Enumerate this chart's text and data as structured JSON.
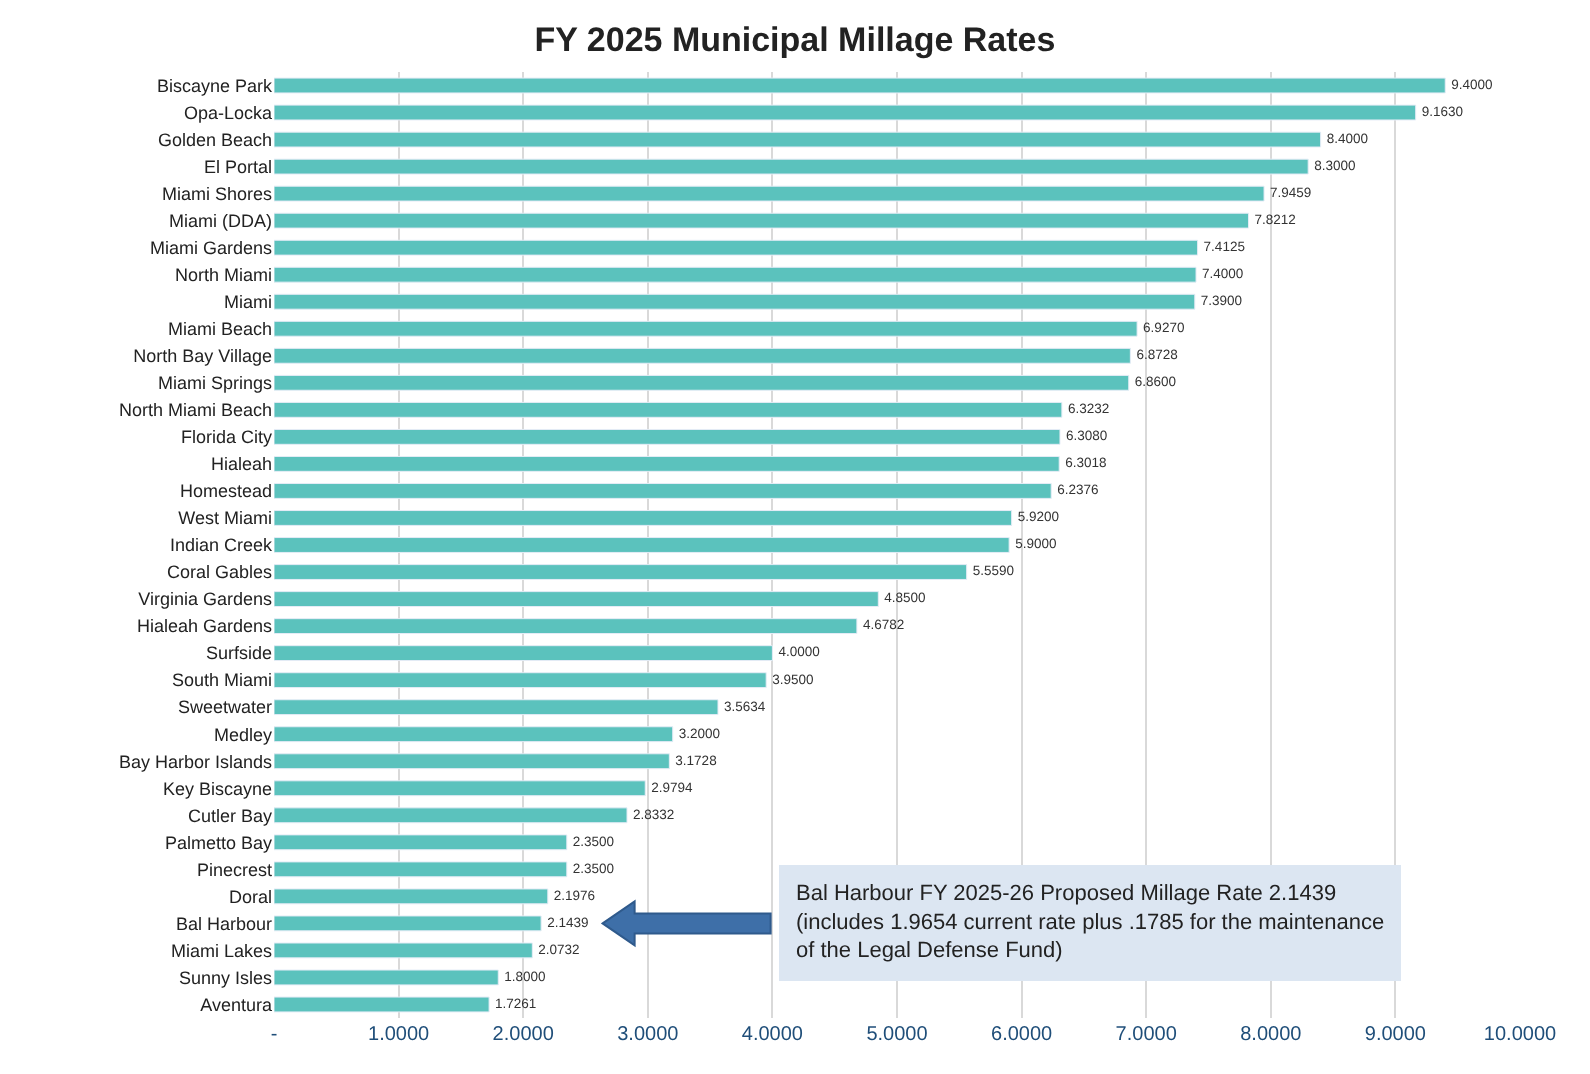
{
  "chart_data": {
    "type": "bar",
    "orientation": "horizontal",
    "title": "FY 2025 Municipal Millage Rates",
    "categories": [
      "Biscayne Park",
      "Opa-Locka",
      "Golden Beach",
      "El Portal",
      "Miami Shores",
      "Miami (DDA)",
      "Miami Gardens",
      "North Miami",
      "Miami",
      "Miami Beach",
      "North Bay Village",
      "Miami Springs",
      "North Miami Beach",
      "Florida City",
      "Hialeah",
      "Homestead",
      "West Miami",
      "Indian Creek",
      "Coral Gables",
      "Virginia Gardens",
      "Hialeah Gardens",
      "Surfside",
      "South Miami",
      "Sweetwater",
      "Medley",
      "Bay Harbor Islands",
      "Key Biscayne",
      "Cutler Bay",
      "Palmetto Bay",
      "Pinecrest",
      "Doral",
      "Bal Harbour",
      "Miami Lakes",
      "Sunny Isles",
      "Aventura"
    ],
    "values": [
      9.4,
      9.163,
      8.4,
      8.3,
      7.9459,
      7.8212,
      7.4125,
      7.4,
      7.39,
      6.927,
      6.8728,
      6.86,
      6.3232,
      6.308,
      6.3018,
      6.2376,
      5.92,
      5.9,
      5.559,
      4.85,
      4.6782,
      4.0,
      3.95,
      3.5634,
      3.2,
      3.1728,
      2.9794,
      2.8332,
      2.35,
      2.35,
      2.1976,
      2.1439,
      2.0732,
      1.8,
      1.7261
    ],
    "value_labels": [
      "9.4000",
      "9.1630",
      "8.4000",
      "8.3000",
      "7.9459",
      "7.8212",
      "7.4125",
      "7.4000",
      "7.3900",
      "6.9270",
      "6.8728",
      "6.8600",
      "6.3232",
      "6.3080",
      "6.3018",
      "6.2376",
      "5.9200",
      "5.9000",
      "5.5590",
      "4.8500",
      "4.6782",
      "4.0000",
      "3.9500",
      "3.5634",
      "3.2000",
      "3.1728",
      "2.9794",
      "2.8332",
      "2.3500",
      "2.3500",
      "2.1976",
      "2.1439",
      "2.0732",
      "1.8000",
      "1.7261"
    ],
    "color": "#5bc2bd",
    "xlim": [
      0,
      10
    ],
    "xticks": [
      {
        "value": 0,
        "label": "-"
      },
      {
        "value": 1,
        "label": "1.0000"
      },
      {
        "value": 2,
        "label": "2.0000"
      },
      {
        "value": 3,
        "label": "3.0000"
      },
      {
        "value": 4,
        "label": "4.0000"
      },
      {
        "value": 5,
        "label": "5.0000"
      },
      {
        "value": 6,
        "label": "6.0000"
      },
      {
        "value": 7,
        "label": "7.0000"
      },
      {
        "value": 8,
        "label": "8.0000"
      },
      {
        "value": 9,
        "label": "9.0000"
      },
      {
        "value": 10,
        "label": "10.0000"
      }
    ],
    "grid": "x",
    "annotations": [
      "Bal Harbour FY 2025-26 Proposed Millage Rate 2.1439\n(includes 1.9654 current rate plus .1785 for the maintenance\nof the Legal Defense Fund)"
    ]
  }
}
